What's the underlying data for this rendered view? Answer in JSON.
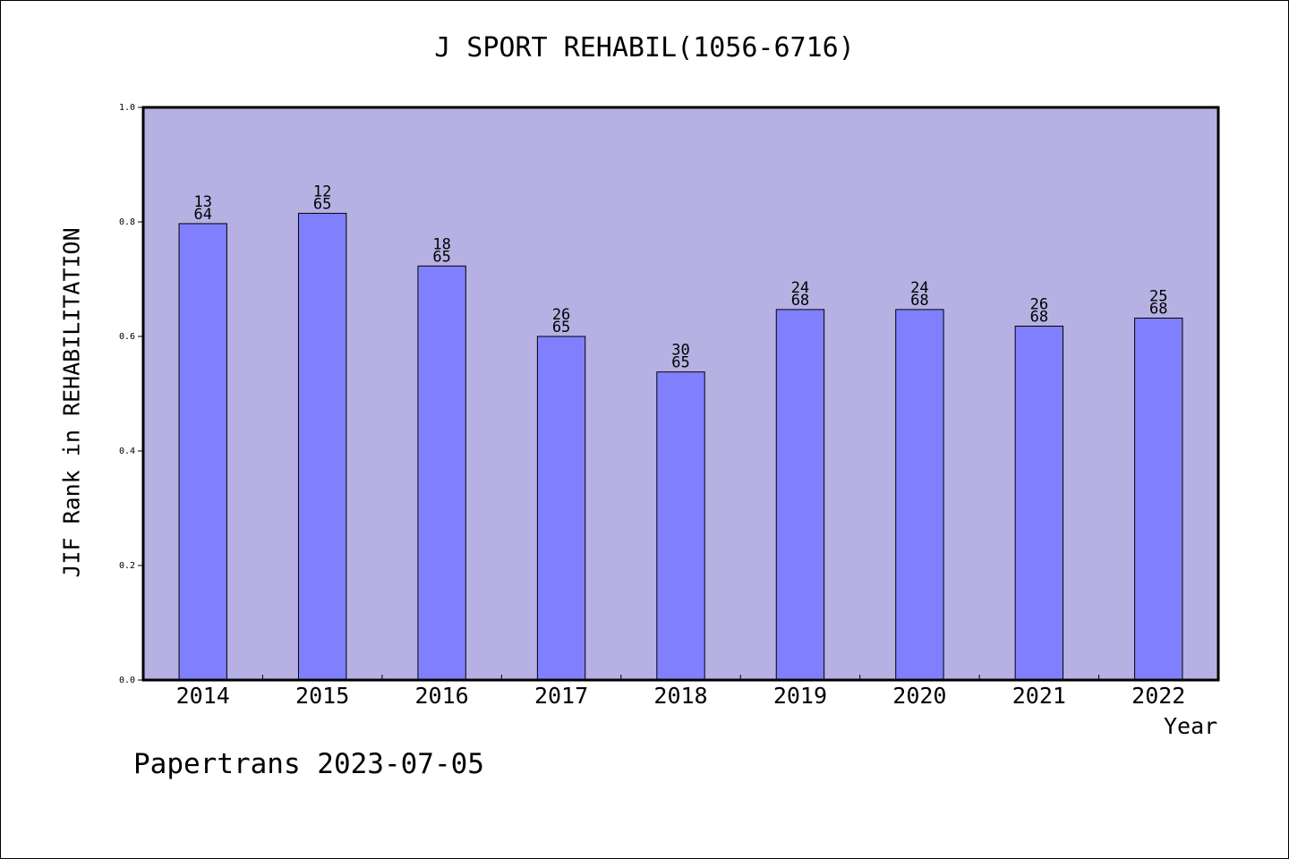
{
  "chart_data": {
    "type": "bar",
    "title": "J SPORT REHABIL(1056-6716)",
    "xlabel": "Year",
    "ylabel": "JIF Rank in REHABILITATION",
    "ylim": [
      0,
      1.0
    ],
    "yticks": [
      "0.0",
      "0.2",
      "0.4",
      "0.6",
      "0.8",
      "1.0"
    ],
    "categories": [
      "2014",
      "2015",
      "2016",
      "2017",
      "2018",
      "2019",
      "2020",
      "2021",
      "2022"
    ],
    "values": [
      0.797,
      0.815,
      0.723,
      0.6,
      0.538,
      0.647,
      0.647,
      0.618,
      0.632
    ],
    "annotations": [
      {
        "rank": "13",
        "total": "64"
      },
      {
        "rank": "12",
        "total": "65"
      },
      {
        "rank": "18",
        "total": "65"
      },
      {
        "rank": "26",
        "total": "65"
      },
      {
        "rank": "30",
        "total": "65"
      },
      {
        "rank": "24",
        "total": "68"
      },
      {
        "rank": "24",
        "total": "68"
      },
      {
        "rank": "26",
        "total": "68"
      },
      {
        "rank": "25",
        "total": "68"
      }
    ],
    "grid": false,
    "colors": {
      "plot_background": "#b6b1e2",
      "bar_fill": "#8080ff",
      "bar_edge": "#000000"
    }
  },
  "footer": "Papertrans 2023-07-05"
}
